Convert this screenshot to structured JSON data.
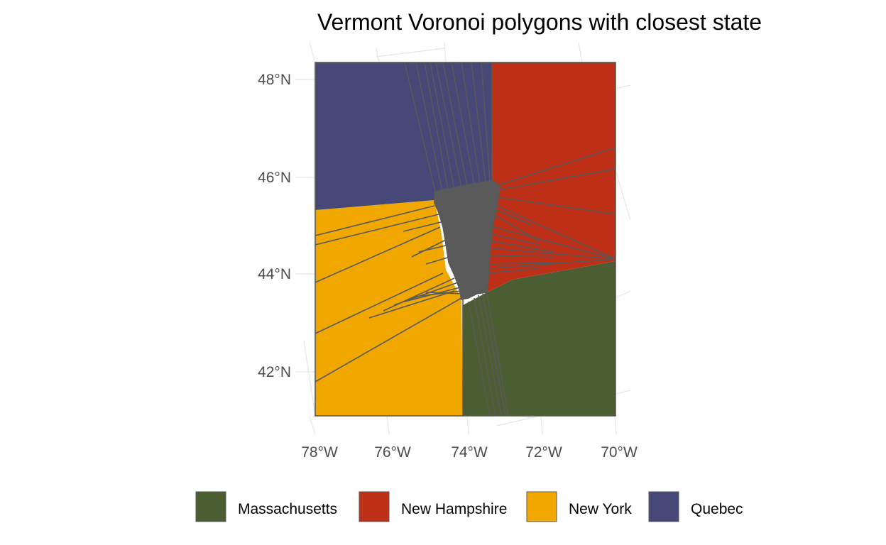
{
  "chart": {
    "title": "Vermont Voronoi polygons with closest state",
    "type": "map",
    "x_axis": {
      "labels": [
        "78°W",
        "76°W",
        "74°W",
        "72°W",
        "70°W"
      ],
      "values": [
        -78,
        -76,
        -74,
        -72,
        -70
      ],
      "range": [
        -78,
        -70
      ]
    },
    "y_axis": {
      "labels": [
        "42°N",
        "44°N",
        "46°N",
        "48°N"
      ],
      "values": [
        42,
        44,
        46,
        48
      ],
      "range": [
        41.0,
        48.4
      ]
    },
    "legend": {
      "position": "bottom",
      "items": [
        {
          "name": "Massachusetts",
          "color": "#4a5e31"
        },
        {
          "name": "New Hampshire",
          "color": "#bf3019"
        },
        {
          "name": "New York",
          "color": "#f0a800"
        },
        {
          "name": "Quebec",
          "color": "#464878"
        }
      ]
    },
    "colors": {
      "vermont_overlay": "#5a5a5a",
      "border": "#595959",
      "gridline": "#e6e6e6"
    }
  }
}
